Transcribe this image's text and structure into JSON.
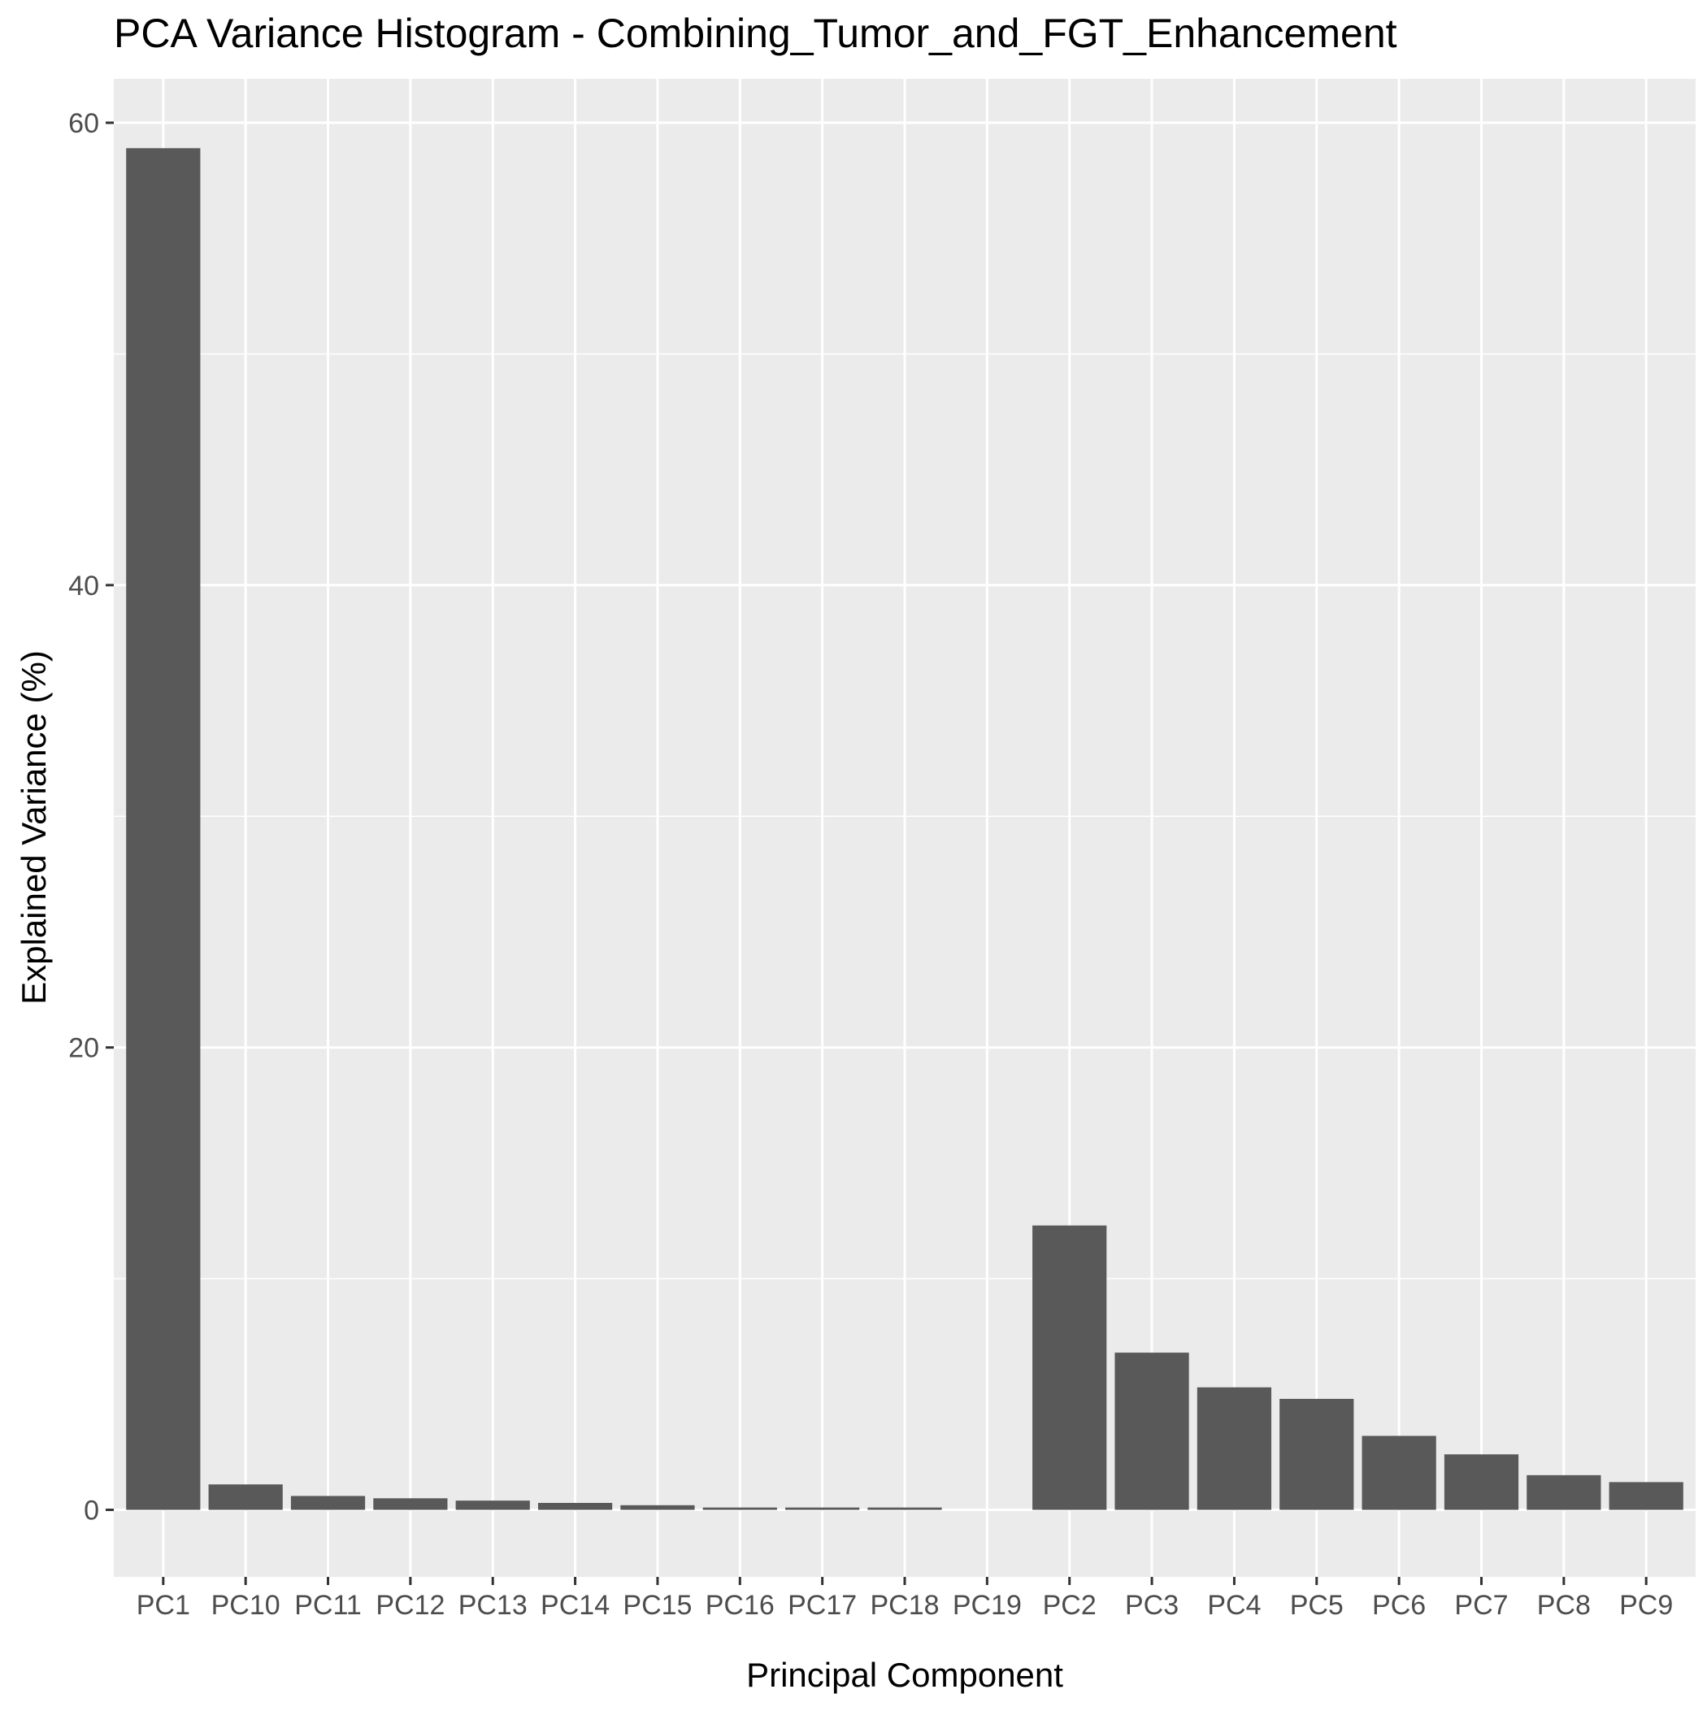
{
  "chart_data": {
    "type": "bar",
    "title": "PCA Variance Histogram - Combining_Tumor_and_FGT_Enhancement",
    "xlabel": "Principal Component",
    "ylabel": "Explained Variance (%)",
    "categories": [
      "PC1",
      "PC10",
      "PC11",
      "PC12",
      "PC13",
      "PC14",
      "PC15",
      "PC16",
      "PC17",
      "PC18",
      "PC19",
      "PC2",
      "PC3",
      "PC4",
      "PC5",
      "PC6",
      "PC7",
      "PC8",
      "PC9"
    ],
    "values": [
      58.9,
      1.1,
      0.6,
      0.5,
      0.4,
      0.3,
      0.2,
      0.1,
      0.1,
      0.1,
      0.0,
      12.3,
      6.8,
      5.3,
      4.8,
      3.2,
      2.4,
      1.5,
      1.2
    ],
    "ylim": [
      -2.9,
      61.9
    ],
    "yticks": [
      0,
      20,
      40,
      60
    ],
    "grid": true,
    "legend": "none",
    "colors": {
      "bar": "#595959",
      "panel": "#ebebeb",
      "grid": "#ffffff",
      "text": "#4d4d4d",
      "title": "#000000"
    }
  }
}
